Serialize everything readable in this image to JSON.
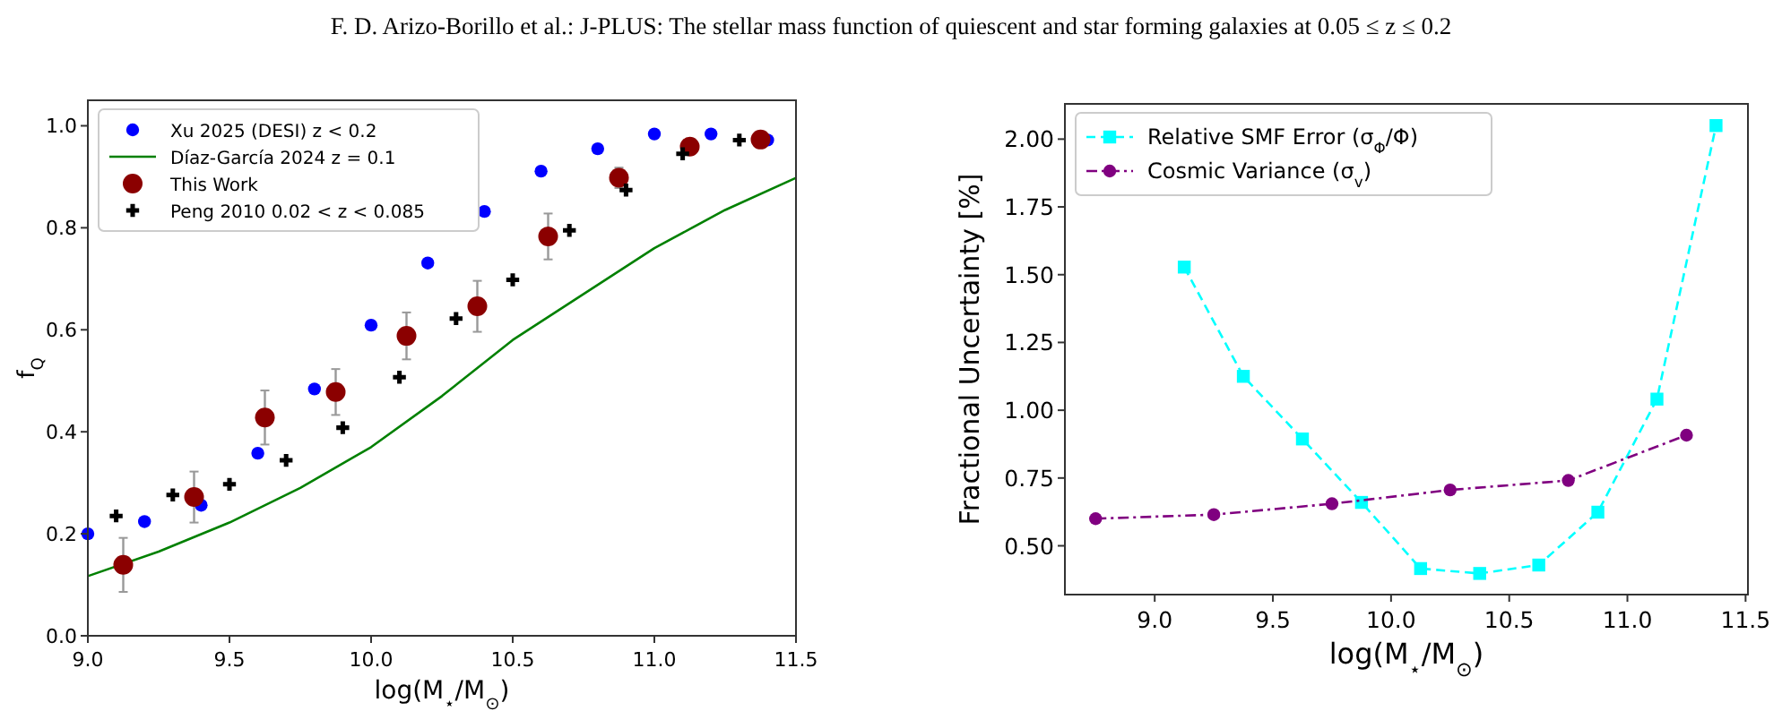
{
  "chart_data": [
    {
      "type": "scatter",
      "title": "F. D. Arizo-Borillo et al.: J-PLUS: The stellar mass function of quiescent and star forming galaxies at 0.05 ≤ z ≤ 0.2",
      "xlabel": "log(M$_{⋆}$/M$_{⊙}$)",
      "ylabel": "f$_{Q}$",
      "xlim": [
        9.0,
        11.5
      ],
      "xticks": [
        {
          "value": 9.0,
          "label": "9.0"
        },
        {
          "value": 9.5,
          "label": "9.5"
        },
        {
          "value": 10.0,
          "label": "10.0"
        },
        {
          "value": 10.5,
          "label": "10.5"
        },
        {
          "value": 11.0,
          "label": "11.0"
        },
        {
          "value": 11.5,
          "label": "11.5"
        }
      ],
      "ylim": [
        0,
        1.05
      ],
      "yticks": [
        {
          "value": 0,
          "label": "0.0"
        },
        {
          "value": 0.2,
          "label": "0.2"
        },
        {
          "value": 0.4,
          "label": "0.4"
        },
        {
          "value": 0.6,
          "label": "0.6"
        },
        {
          "value": 0.8,
          "label": "0.8"
        },
        {
          "value": 1.0,
          "label": "1.0"
        }
      ],
      "legend": "top left",
      "series": [
        {
          "name": "Xu 2025 (DESI) z < 0.2",
          "marker": "circle",
          "color": "#0000ff",
          "x": [
            9.0,
            9.2,
            9.4,
            9.6,
            9.8,
            10.0,
            10.2,
            10.4,
            10.6,
            10.8,
            11.0,
            11.2,
            11.4
          ],
          "values": [
            0.2,
            0.224,
            0.256,
            0.358,
            0.484,
            0.609,
            0.731,
            0.832,
            0.911,
            0.955,
            0.984,
            0.984,
            0.972
          ]
        },
        {
          "name": "Díaz-García 2024 z = 0.1",
          "type": "line",
          "marker": "none",
          "line_style": "solid",
          "color": "#008000",
          "x": [
            9.0,
            9.25,
            9.5,
            9.75,
            10.0,
            10.25,
            10.5,
            10.75,
            11.0,
            11.25,
            11.5
          ],
          "values": [
            0.117,
            0.165,
            0.222,
            0.29,
            0.37,
            0.47,
            0.58,
            0.67,
            0.76,
            0.835,
            0.898
          ]
        },
        {
          "name": "This Work",
          "marker": "circle",
          "color": "#8b0000",
          "x": [
            9.125,
            9.375,
            9.625,
            9.875,
            10.125,
            10.375,
            10.625,
            10.875,
            11.125,
            11.375
          ],
          "values": [
            0.139,
            0.272,
            0.428,
            0.478,
            0.588,
            0.646,
            0.783,
            0.898,
            0.959,
            0.973
          ],
          "errors": [
            0.053,
            0.05,
            0.053,
            0.045,
            0.046,
            0.05,
            0.045,
            0.02,
            0.01,
            0.015
          ]
        },
        {
          "name": "Peng 2010 0.02 < z < 0.085",
          "marker": "cross",
          "color": "#000000",
          "x": [
            9.1,
            9.3,
            9.5,
            9.7,
            9.9,
            10.1,
            10.3,
            10.5,
            10.7,
            10.9,
            11.1,
            11.3
          ],
          "values": [
            0.235,
            0.276,
            0.297,
            0.344,
            0.408,
            0.507,
            0.622,
            0.698,
            0.795,
            0.874,
            0.945,
            0.972
          ]
        }
      ]
    },
    {
      "type": "line",
      "xlabel": "log(M$_{⋆}$/M$_{⊙}$)",
      "ylabel": "Fractional Uncertainty [%]",
      "xlim": [
        8.62,
        11.51
      ],
      "xticks": [
        {
          "value": 9.0,
          "label": "9.0"
        },
        {
          "value": 9.5,
          "label": "9.5"
        },
        {
          "value": 10.0,
          "label": "10.0"
        },
        {
          "value": 10.5,
          "label": "10.5"
        },
        {
          "value": 11.0,
          "label": "11.0"
        },
        {
          "value": 11.5,
          "label": "11.5"
        }
      ],
      "ylim": [
        0.32,
        2.13
      ],
      "yticks": [
        {
          "value": 0.5,
          "label": "0.50"
        },
        {
          "value": 0.75,
          "label": "0.75"
        },
        {
          "value": 1.0,
          "label": "1.00"
        },
        {
          "value": 1.25,
          "label": "1.25"
        },
        {
          "value": 1.5,
          "label": "1.50"
        },
        {
          "value": 1.75,
          "label": "1.75"
        },
        {
          "value": 2.0,
          "label": "2.00"
        }
      ],
      "legend": "top left",
      "series": [
        {
          "name": "Relative SMF Error (σ$_{Φ}$/Φ)",
          "marker": "square",
          "line_style": "dashed",
          "color": "#00ffff",
          "x": [
            9.125,
            9.375,
            9.625,
            9.875,
            10.125,
            10.375,
            10.625,
            10.875,
            11.125,
            11.375
          ],
          "values": [
            1.528,
            1.125,
            0.894,
            0.66,
            0.416,
            0.398,
            0.429,
            0.624,
            1.041,
            2.05
          ]
        },
        {
          "name": "Cosmic Variance (σ$_{v}$)",
          "marker": "circle",
          "line_style": "dashdot",
          "color": "#800080",
          "x": [
            8.75,
            9.25,
            9.75,
            10.25,
            10.75,
            11.25
          ],
          "values": [
            0.6,
            0.615,
            0.655,
            0.706,
            0.741,
            0.908
          ]
        }
      ]
    }
  ]
}
